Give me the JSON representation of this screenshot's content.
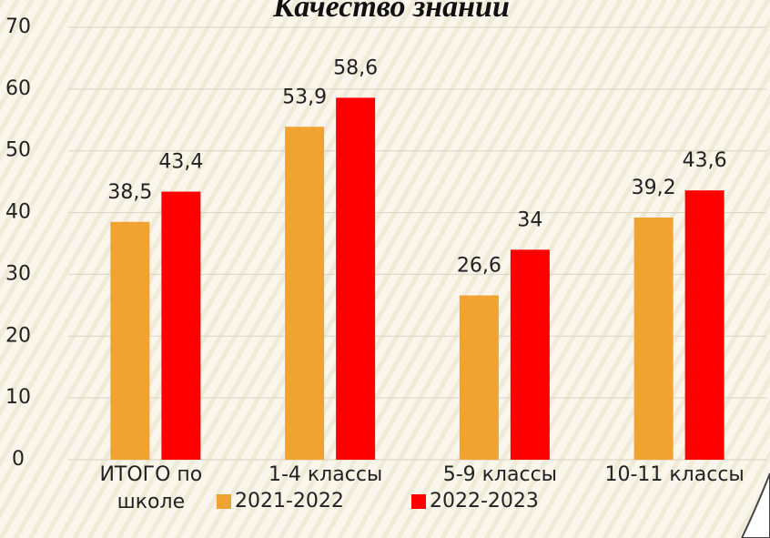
{
  "chart_data": {
    "type": "bar",
    "title": "Качество знаний",
    "categories": [
      "ИТОГО по школе",
      "1-4 классы",
      "5-9 классы",
      "10-11 классы"
    ],
    "series": [
      {
        "name": "2021-2022",
        "color": "#f0a330",
        "values": [
          38.5,
          53.9,
          26.6,
          39.2
        ],
        "value_labels": [
          "38,5",
          "53,9",
          "26,6",
          "39,2"
        ]
      },
      {
        "name": "2022-2023",
        "color": "#ff0000",
        "values": [
          43.4,
          58.6,
          34,
          43.6
        ],
        "value_labels": [
          "43,4",
          "58,6",
          "34",
          "43,6"
        ]
      }
    ],
    "ylim": [
      0,
      70
    ],
    "yticks": [
      0,
      10,
      20,
      30,
      40,
      50,
      60,
      70
    ],
    "grid": true,
    "legend": "bottom"
  }
}
